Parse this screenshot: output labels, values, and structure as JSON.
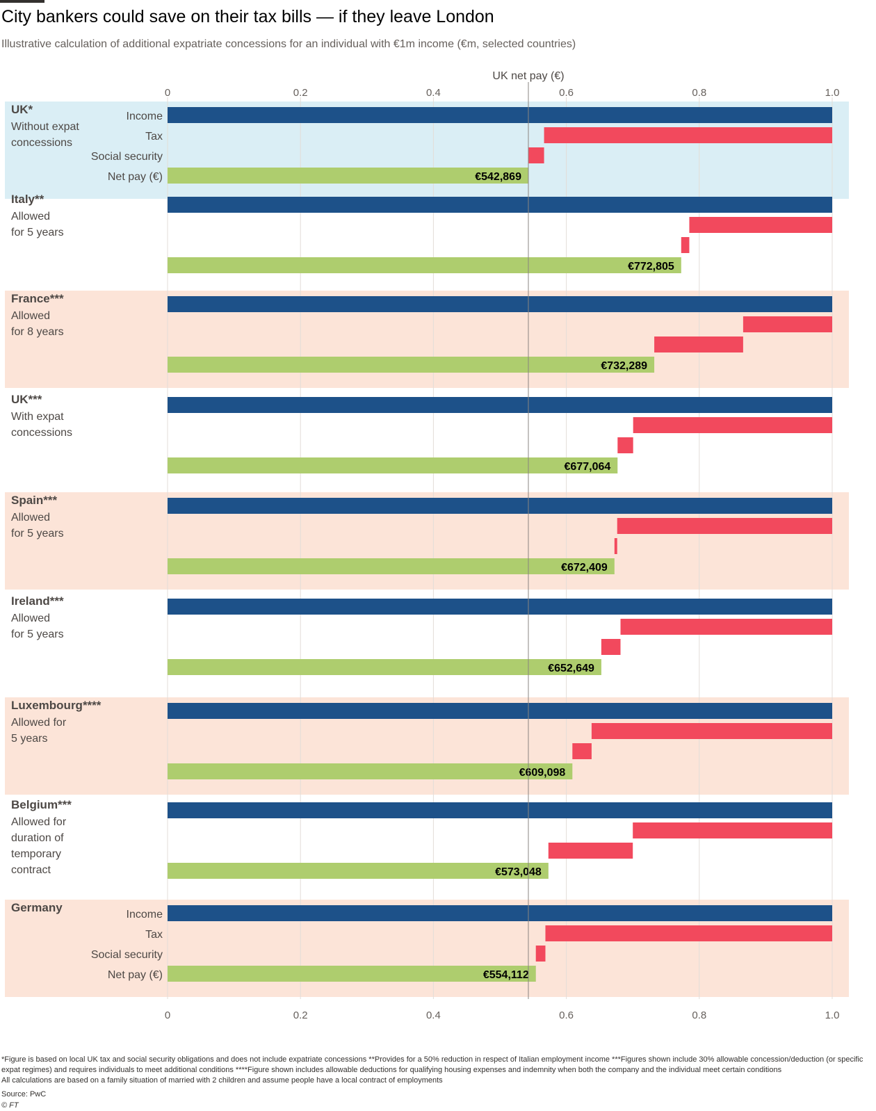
{
  "header": {
    "title": "City bankers could save on their tax bills — if they leave London",
    "subtitle": "Illustrative calculation of additional expatriate concessions for an individual with €1m income (€m, selected countries)"
  },
  "footer": {
    "footnotes": "*Figure is based on local UK tax and social security obligations and does not include expatriate concessions **Provides for a 50% reduction in respect of Italian employment income ***Figures shown include 30% allowable concession/deduction (or specific expat regimes) and requires individuals to meet additional conditions ****Figure shown includes allowable deductions for qualifying housing expenses and indemnity when both the company and the individual meet certain conditions",
    "note": "All calculations are based on a family situation of married with 2 children and assume people have a local contract of employments",
    "source": "Source: PwC",
    "copyright": "© FT"
  },
  "chart_data": {
    "type": "bar",
    "orientation": "horizontal waterfall",
    "xlim": [
      0,
      1.0
    ],
    "x_ticks": [
      "0",
      "0.2",
      "0.4",
      "0.6",
      "0.8",
      "1.0"
    ],
    "x_tick_values": [
      0,
      0.2,
      0.4,
      0.6,
      0.8,
      1.0
    ],
    "reference_line": {
      "label": "UK net pay (€)",
      "value": 0.542869
    },
    "row_labels": [
      "Income",
      "Tax",
      "Social security",
      "Net pay (€)"
    ],
    "colors": {
      "income": "#1d5189",
      "deduction": "#f2495d",
      "net_pay": "#aecd6e",
      "band_blue": "#daeef5",
      "band_peach": "#fce4d8",
      "grid": "#e3ddd8",
      "reference": "#8a8480"
    },
    "groups": [
      {
        "country": "UK*",
        "description": [
          "Without expat",
          "concessions"
        ],
        "band": "blue",
        "show_row_labels": true,
        "income": 1.0,
        "tax": 0.4335,
        "social_security": 0.0236,
        "net_pay": 0.542869,
        "net_pay_label": "€542,869"
      },
      {
        "country": "Italy**",
        "description": [
          "Allowed",
          "for 5 years"
        ],
        "band": "none",
        "show_row_labels": false,
        "income": 1.0,
        "tax": 0.215,
        "social_security": 0.0122,
        "net_pay": 0.772805,
        "net_pay_label": "€772,805"
      },
      {
        "country": "France***",
        "description": [
          "Allowed",
          "for 8 years"
        ],
        "band": "peach",
        "show_row_labels": false,
        "income": 1.0,
        "tax": 0.134,
        "social_security": 0.1337,
        "net_pay": 0.732289,
        "net_pay_label": "€732,289"
      },
      {
        "country": "UK***",
        "description": [
          "With expat",
          "concessions"
        ],
        "band": "none",
        "show_row_labels": false,
        "income": 1.0,
        "tax": 0.2995,
        "social_security": 0.0234,
        "net_pay": 0.677064,
        "net_pay_label": "€677,064"
      },
      {
        "country": "Spain***",
        "description": [
          "Allowed",
          "for 5 years"
        ],
        "band": "peach",
        "show_row_labels": false,
        "income": 1.0,
        "tax": 0.3235,
        "social_security": 0.0041,
        "net_pay": 0.672409,
        "net_pay_label": "€672,409"
      },
      {
        "country": "Ireland***",
        "description": [
          "Allowed",
          "for 5 years"
        ],
        "band": "none",
        "show_row_labels": false,
        "income": 1.0,
        "tax": 0.3185,
        "social_security": 0.0289,
        "net_pay": 0.652649,
        "net_pay_label": "€652,649"
      },
      {
        "country": "Luxembourg****",
        "description": [
          "Allowed for",
          "5 years"
        ],
        "band": "peach",
        "show_row_labels": false,
        "income": 1.0,
        "tax": 0.362,
        "social_security": 0.0289,
        "net_pay": 0.609098,
        "net_pay_label": "€609,098"
      },
      {
        "country": "Belgium***",
        "description": [
          "Allowed for",
          "duration of",
          "temporary",
          "contract"
        ],
        "band": "none",
        "show_row_labels": false,
        "income": 1.0,
        "tax": 0.3,
        "social_security": 0.127,
        "net_pay": 0.573048,
        "net_pay_label": "€573,048"
      },
      {
        "country": "Germany",
        "description": [],
        "band": "peach",
        "show_row_labels": true,
        "income": 1.0,
        "tax": 0.4315,
        "social_security": 0.0144,
        "net_pay": 0.554112,
        "net_pay_label": "€554,112"
      }
    ]
  }
}
